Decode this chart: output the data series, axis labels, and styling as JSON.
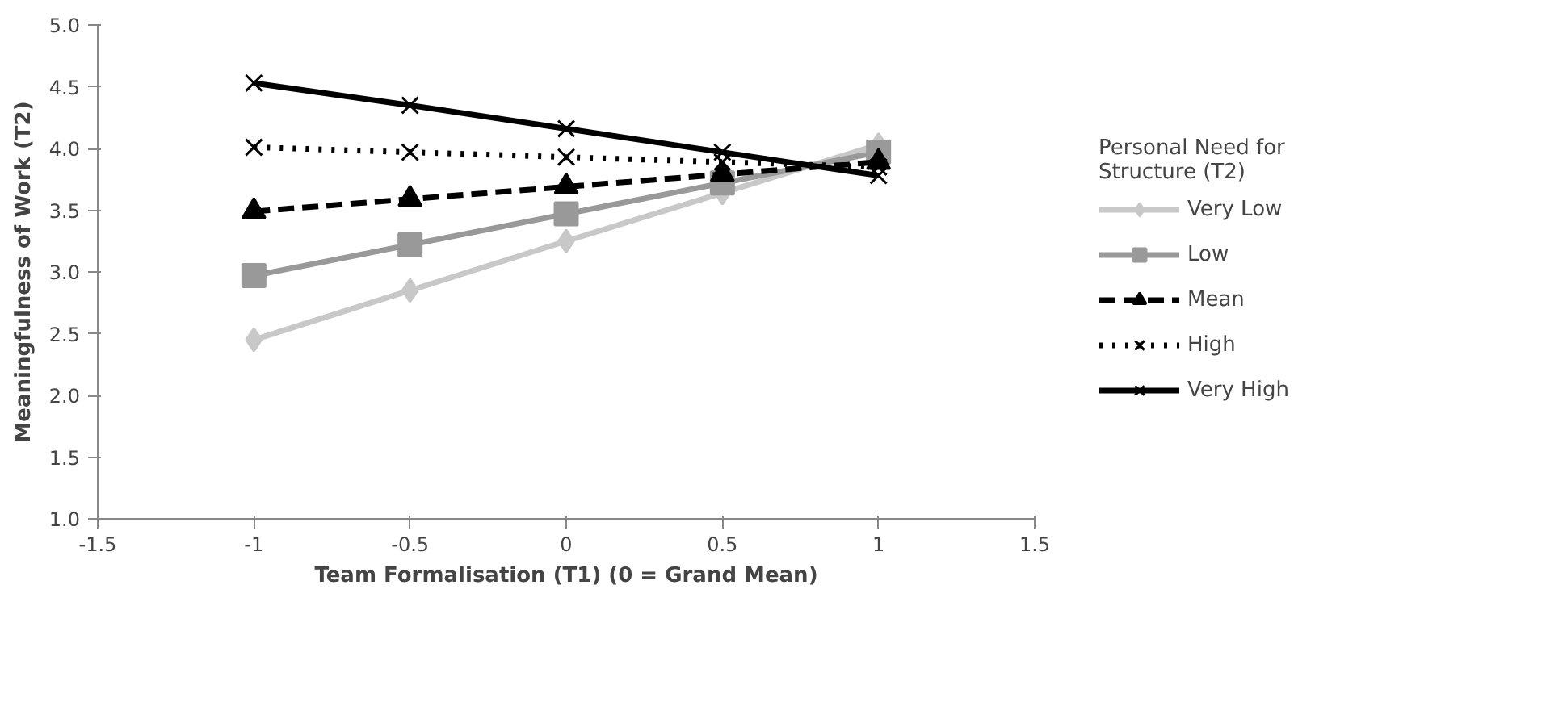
{
  "chart_data": {
    "type": "line",
    "xlabel": "Team Formalisation (T1) (0 = Grand Mean)",
    "ylabel": "Meaningfulness of Work (T2)",
    "legend_title": "Personal Need for Structure (T2)",
    "legend": "right",
    "grid": false,
    "x": [
      -1,
      -0.5,
      0,
      0.5,
      1
    ],
    "xlim": [
      -1.5,
      1.5
    ],
    "xticks": [
      -1.5,
      -1,
      -0.5,
      0,
      0.5,
      1,
      1.5
    ],
    "ylim": [
      1,
      5
    ],
    "yticks": [
      {
        "value": 1,
        "label": "1.0"
      },
      {
        "value": 1.5,
        "label": "1.5"
      },
      {
        "value": 2,
        "label": "2.0"
      },
      {
        "value": 2.5,
        "label": "2.5"
      },
      {
        "value": 3,
        "label": "3.0"
      },
      {
        "value": 3.5,
        "label": "3.5"
      },
      {
        "value": 4,
        "label": "4.0"
      },
      {
        "value": 4.5,
        "label": "4.5"
      },
      {
        "value": 5,
        "label": "5.0"
      }
    ],
    "series": [
      {
        "name": "Very Low",
        "color": "#c8c8c8",
        "marker": "diamond",
        "line_style": "solid",
        "values": [
          2.45,
          2.85,
          3.25,
          3.64,
          4.03
        ]
      },
      {
        "name": "Low",
        "color": "#999999",
        "marker": "square",
        "line_style": "solid",
        "values": [
          2.97,
          3.22,
          3.47,
          3.72,
          3.97
        ]
      },
      {
        "name": "Mean",
        "color": "#000000",
        "marker": "triangle",
        "line_style": "dashed",
        "values": [
          3.49,
          3.59,
          3.69,
          3.79,
          3.89
        ]
      },
      {
        "name": "High",
        "color": "#000000",
        "marker": "cross",
        "line_style": "dotted",
        "values": [
          4.01,
          3.97,
          3.93,
          3.89,
          3.85
        ]
      },
      {
        "name": "Very High",
        "color": "#000000",
        "marker": "cross",
        "line_style": "solid",
        "values": [
          4.53,
          4.35,
          4.16,
          3.97,
          3.78
        ]
      }
    ]
  }
}
